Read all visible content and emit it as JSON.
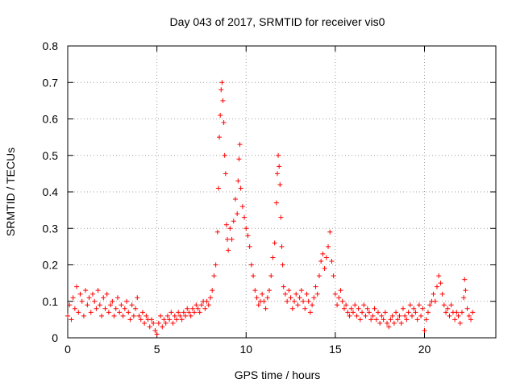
{
  "chart_data": {
    "type": "scatter",
    "title": "Day 043 of 2017, SRMTID for receiver vis0",
    "xlabel": "GPS time / hours",
    "ylabel": "SRMTID / TECUs",
    "xlim": [
      0,
      24
    ],
    "ylim": [
      0,
      0.8
    ],
    "xticks": [
      0,
      5,
      10,
      15,
      20
    ],
    "xtick_labels": [
      "0",
      "5",
      "10",
      "15",
      "20"
    ],
    "yticks": [
      0,
      0.1,
      0.2,
      0.3,
      0.4,
      0.5,
      0.6,
      0.7,
      0.8
    ],
    "ytick_labels": [
      "0",
      "0.1",
      "0.2",
      "0.3",
      "0.4",
      "0.5",
      "0.6",
      "0.7",
      "0.8"
    ],
    "grid": true,
    "marker": "+",
    "color": "#ff0000",
    "series": [
      {
        "name": "SRMTID",
        "points": [
          [
            0.0,
            0.06
          ],
          [
            0.1,
            0.09
          ],
          [
            0.2,
            0.05
          ],
          [
            0.3,
            0.11
          ],
          [
            0.4,
            0.08
          ],
          [
            0.5,
            0.14
          ],
          [
            0.6,
            0.07
          ],
          [
            0.7,
            0.12
          ],
          [
            0.8,
            0.1
          ],
          [
            0.9,
            0.06
          ],
          [
            1.0,
            0.13
          ],
          [
            1.1,
            0.09
          ],
          [
            1.2,
            0.11
          ],
          [
            1.3,
            0.07
          ],
          [
            1.4,
            0.12
          ],
          [
            1.5,
            0.1
          ],
          [
            1.6,
            0.08
          ],
          [
            1.7,
            0.13
          ],
          [
            1.8,
            0.09
          ],
          [
            1.9,
            0.06
          ],
          [
            2.0,
            0.11
          ],
          [
            2.1,
            0.08
          ],
          [
            2.2,
            0.12
          ],
          [
            2.3,
            0.07
          ],
          [
            2.4,
            0.09
          ],
          [
            2.5,
            0.1
          ],
          [
            2.6,
            0.06
          ],
          [
            2.7,
            0.08
          ],
          [
            2.8,
            0.11
          ],
          [
            2.9,
            0.07
          ],
          [
            3.0,
            0.09
          ],
          [
            3.1,
            0.06
          ],
          [
            3.2,
            0.08
          ],
          [
            3.3,
            0.1
          ],
          [
            3.4,
            0.07
          ],
          [
            3.5,
            0.05
          ],
          [
            3.6,
            0.09
          ],
          [
            3.7,
            0.06
          ],
          [
            3.8,
            0.08
          ],
          [
            3.9,
            0.11
          ],
          [
            4.0,
            0.06
          ],
          [
            4.1,
            0.05
          ],
          [
            4.2,
            0.07
          ],
          [
            4.3,
            0.04
          ],
          [
            4.4,
            0.06
          ],
          [
            4.5,
            0.05
          ],
          [
            4.6,
            0.03
          ],
          [
            4.7,
            0.05
          ],
          [
            4.8,
            0.04
          ],
          [
            4.9,
            0.02
          ],
          [
            5.0,
            0.01
          ],
          [
            5.1,
            0.04
          ],
          [
            5.2,
            0.06
          ],
          [
            5.3,
            0.03
          ],
          [
            5.4,
            0.05
          ],
          [
            5.5,
            0.04
          ],
          [
            5.6,
            0.06
          ],
          [
            5.7,
            0.05
          ],
          [
            5.8,
            0.07
          ],
          [
            5.9,
            0.04
          ],
          [
            6.0,
            0.06
          ],
          [
            6.1,
            0.05
          ],
          [
            6.2,
            0.07
          ],
          [
            6.3,
            0.06
          ],
          [
            6.4,
            0.05
          ],
          [
            6.5,
            0.07
          ],
          [
            6.6,
            0.06
          ],
          [
            6.7,
            0.08
          ],
          [
            6.8,
            0.07
          ],
          [
            6.9,
            0.06
          ],
          [
            7.0,
            0.08
          ],
          [
            7.1,
            0.07
          ],
          [
            7.2,
            0.09
          ],
          [
            7.3,
            0.08
          ],
          [
            7.4,
            0.07
          ],
          [
            7.5,
            0.09
          ],
          [
            7.6,
            0.1
          ],
          [
            7.7,
            0.08
          ],
          [
            7.8,
            0.1
          ],
          [
            7.9,
            0.09
          ],
          [
            8.0,
            0.11
          ],
          [
            8.1,
            0.13
          ],
          [
            8.2,
            0.17
          ],
          [
            8.3,
            0.2
          ],
          [
            8.4,
            0.29
          ],
          [
            8.45,
            0.41
          ],
          [
            8.5,
            0.55
          ],
          [
            8.55,
            0.61
          ],
          [
            8.6,
            0.68
          ],
          [
            8.65,
            0.7
          ],
          [
            8.7,
            0.65
          ],
          [
            8.75,
            0.59
          ],
          [
            8.8,
            0.5
          ],
          [
            8.85,
            0.45
          ],
          [
            8.9,
            0.31
          ],
          [
            8.95,
            0.27
          ],
          [
            9.0,
            0.24
          ],
          [
            9.1,
            0.3
          ],
          [
            9.2,
            0.27
          ],
          [
            9.3,
            0.32
          ],
          [
            9.4,
            0.38
          ],
          [
            9.5,
            0.34
          ],
          [
            9.55,
            0.43
          ],
          [
            9.6,
            0.49
          ],
          [
            9.65,
            0.53
          ],
          [
            9.7,
            0.41
          ],
          [
            9.8,
            0.36
          ],
          [
            9.9,
            0.33
          ],
          [
            10.0,
            0.3
          ],
          [
            10.1,
            0.28
          ],
          [
            10.2,
            0.25
          ],
          [
            10.3,
            0.2
          ],
          [
            10.4,
            0.17
          ],
          [
            10.5,
            0.13
          ],
          [
            10.6,
            0.11
          ],
          [
            10.7,
            0.09
          ],
          [
            10.8,
            0.1
          ],
          [
            10.9,
            0.12
          ],
          [
            11.0,
            0.1
          ],
          [
            11.1,
            0.08
          ],
          [
            11.2,
            0.11
          ],
          [
            11.3,
            0.13
          ],
          [
            11.4,
            0.17
          ],
          [
            11.5,
            0.22
          ],
          [
            11.6,
            0.26
          ],
          [
            11.7,
            0.37
          ],
          [
            11.75,
            0.45
          ],
          [
            11.8,
            0.5
          ],
          [
            11.85,
            0.47
          ],
          [
            11.9,
            0.42
          ],
          [
            11.95,
            0.33
          ],
          [
            12.0,
            0.25
          ],
          [
            12.05,
            0.2
          ],
          [
            12.1,
            0.14
          ],
          [
            12.2,
            0.12
          ],
          [
            12.3,
            0.1
          ],
          [
            12.4,
            0.13
          ],
          [
            12.5,
            0.11
          ],
          [
            12.6,
            0.08
          ],
          [
            12.7,
            0.1
          ],
          [
            12.8,
            0.12
          ],
          [
            12.9,
            0.09
          ],
          [
            13.0,
            0.11
          ],
          [
            13.1,
            0.13
          ],
          [
            13.2,
            0.1
          ],
          [
            13.3,
            0.08
          ],
          [
            13.4,
            0.12
          ],
          [
            13.5,
            0.1
          ],
          [
            13.6,
            0.07
          ],
          [
            13.7,
            0.09
          ],
          [
            13.8,
            0.11
          ],
          [
            13.9,
            0.14
          ],
          [
            14.0,
            0.12
          ],
          [
            14.1,
            0.17
          ],
          [
            14.2,
            0.21
          ],
          [
            14.3,
            0.23
          ],
          [
            14.4,
            0.19
          ],
          [
            14.5,
            0.22
          ],
          [
            14.6,
            0.25
          ],
          [
            14.7,
            0.29
          ],
          [
            14.8,
            0.21
          ],
          [
            14.9,
            0.17
          ],
          [
            15.0,
            0.12
          ],
          [
            15.1,
            0.09
          ],
          [
            15.2,
            0.11
          ],
          [
            15.3,
            0.13
          ],
          [
            15.4,
            0.1
          ],
          [
            15.5,
            0.08
          ],
          [
            15.6,
            0.09
          ],
          [
            15.7,
            0.07
          ],
          [
            15.8,
            0.06
          ],
          [
            15.9,
            0.08
          ],
          [
            16.0,
            0.07
          ],
          [
            16.1,
            0.09
          ],
          [
            16.2,
            0.06
          ],
          [
            16.3,
            0.08
          ],
          [
            16.4,
            0.05
          ],
          [
            16.5,
            0.07
          ],
          [
            16.6,
            0.09
          ],
          [
            16.7,
            0.06
          ],
          [
            16.8,
            0.08
          ],
          [
            16.9,
            0.07
          ],
          [
            17.0,
            0.05
          ],
          [
            17.1,
            0.06
          ],
          [
            17.2,
            0.08
          ],
          [
            17.3,
            0.05
          ],
          [
            17.4,
            0.07
          ],
          [
            17.5,
            0.04
          ],
          [
            17.6,
            0.06
          ],
          [
            17.7,
            0.05
          ],
          [
            17.8,
            0.07
          ],
          [
            17.9,
            0.04
          ],
          [
            18.0,
            0.03
          ],
          [
            18.1,
            0.05
          ],
          [
            18.2,
            0.06
          ],
          [
            18.3,
            0.04
          ],
          [
            18.4,
            0.07
          ],
          [
            18.5,
            0.05
          ],
          [
            18.6,
            0.06
          ],
          [
            18.7,
            0.04
          ],
          [
            18.8,
            0.08
          ],
          [
            18.9,
            0.06
          ],
          [
            19.0,
            0.05
          ],
          [
            19.1,
            0.07
          ],
          [
            19.2,
            0.09
          ],
          [
            19.3,
            0.06
          ],
          [
            19.4,
            0.08
          ],
          [
            19.5,
            0.07
          ],
          [
            19.6,
            0.05
          ],
          [
            19.7,
            0.09
          ],
          [
            19.8,
            0.06
          ],
          [
            19.9,
            0.08
          ],
          [
            20.0,
            0.02
          ],
          [
            20.1,
            0.05
          ],
          [
            20.2,
            0.07
          ],
          [
            20.3,
            0.09
          ],
          [
            20.4,
            0.1
          ],
          [
            20.5,
            0.12
          ],
          [
            20.6,
            0.1
          ],
          [
            20.7,
            0.14
          ],
          [
            20.8,
            0.17
          ],
          [
            20.9,
            0.15
          ],
          [
            21.0,
            0.12
          ],
          [
            21.1,
            0.09
          ],
          [
            21.2,
            0.07
          ],
          [
            21.3,
            0.08
          ],
          [
            21.4,
            0.06
          ],
          [
            21.5,
            0.09
          ],
          [
            21.6,
            0.07
          ],
          [
            21.7,
            0.05
          ],
          [
            21.8,
            0.07
          ],
          [
            21.9,
            0.06
          ],
          [
            22.0,
            0.04
          ],
          [
            22.1,
            0.07
          ],
          [
            22.2,
            0.11
          ],
          [
            22.25,
            0.16
          ],
          [
            22.3,
            0.13
          ],
          [
            22.4,
            0.08
          ],
          [
            22.5,
            0.06
          ],
          [
            22.6,
            0.05
          ],
          [
            22.7,
            0.07
          ]
        ]
      }
    ]
  }
}
